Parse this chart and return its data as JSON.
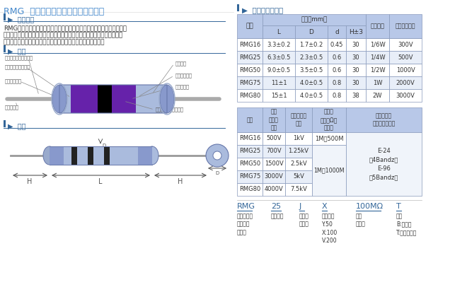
{
  "title": "RMG  ハイメグメタルグレーズ抗抗器",
  "title_color": "#4488cc",
  "bg_color": "#ffffff",
  "intro_heading": "▶  製品紹介",
  "intro_text_line1": "RMGハイメグ抗抗器は、メタルグレーズ高抗抗材料を均一に形成した高",
  "intro_text_line2": "純度磁器基体を絶縁性の良い塗料でコーティングしてあるため、高電圧印",
  "intro_text_line3": "加に耘え、諸特性も安定したきわめて高い抗抗値の製品です。",
  "structure_heading": "▶  構造",
  "labels_left": [
    "はんだメッキリード線",
    "メタルグレーズ薄膜",
    "キャップ端子",
    "リード溶接"
  ],
  "labels_right": [
    "絶縁塗装",
    "カラーコード",
    "らせん溝切",
    "高熱伝導性セラミック"
  ],
  "shape_heading": "▶  形状",
  "right_heading": "▶  寿法および定格",
  "table1_data": [
    [
      "RMG16",
      "3.3±0.2",
      "1.7±0.2",
      "0.45",
      "30",
      "1/6W",
      "300V"
    ],
    [
      "RMG25",
      "6.3±0.5",
      "2.3±0.5",
      "0.6",
      "30",
      "1/4W",
      "500V"
    ],
    [
      "RMG50",
      "9.0±0.5",
      "3.5±0.5",
      "0.6",
      "30",
      "1/2W",
      "1000V"
    ],
    [
      "RMG75",
      "11±1",
      "4.0±0.5",
      "0.8",
      "30",
      "1W",
      "2000V"
    ],
    [
      "RMG80",
      "15±1",
      "4.0±0.5",
      "0.8",
      "38",
      "2W",
      "3000V"
    ]
  ],
  "table2_data_rows": [
    [
      "RMG16",
      "500V",
      "1kV",
      "1M～500M"
    ],
    [
      "RMG25",
      "700V",
      "1.25kV",
      ""
    ],
    [
      "RMG50",
      "1500V",
      "2.5kV",
      ""
    ],
    [
      "RMG75",
      "3000V",
      "5kV",
      ""
    ],
    [
      "RMG80",
      "4000V",
      "7.5kV",
      ""
    ]
  ],
  "part_items": [
    {
      "label": "RMG",
      "desc": "ハイメタル\nグレーズ\n抗抗器"
    },
    {
      "label": "25",
      "desc": "定格電力"
    },
    {
      "label": "J",
      "desc": "抗抗値\n許容差"
    },
    {
      "label": "X",
      "desc": "温度係数\nY:50\nX:100\nV:200"
    },
    {
      "label": "100MΩ",
      "desc": "公称\n抗抗値"
    },
    {
      "label": "T",
      "desc": "包装\nB:バルク\nT:テーピング"
    }
  ],
  "header_bg": "#b8c8e8",
  "row_alt1": "#ffffff",
  "row_alt2": "#e8eef8",
  "table_border": "#8899bb",
  "label_color": "#336699",
  "heading_color": "#336699"
}
